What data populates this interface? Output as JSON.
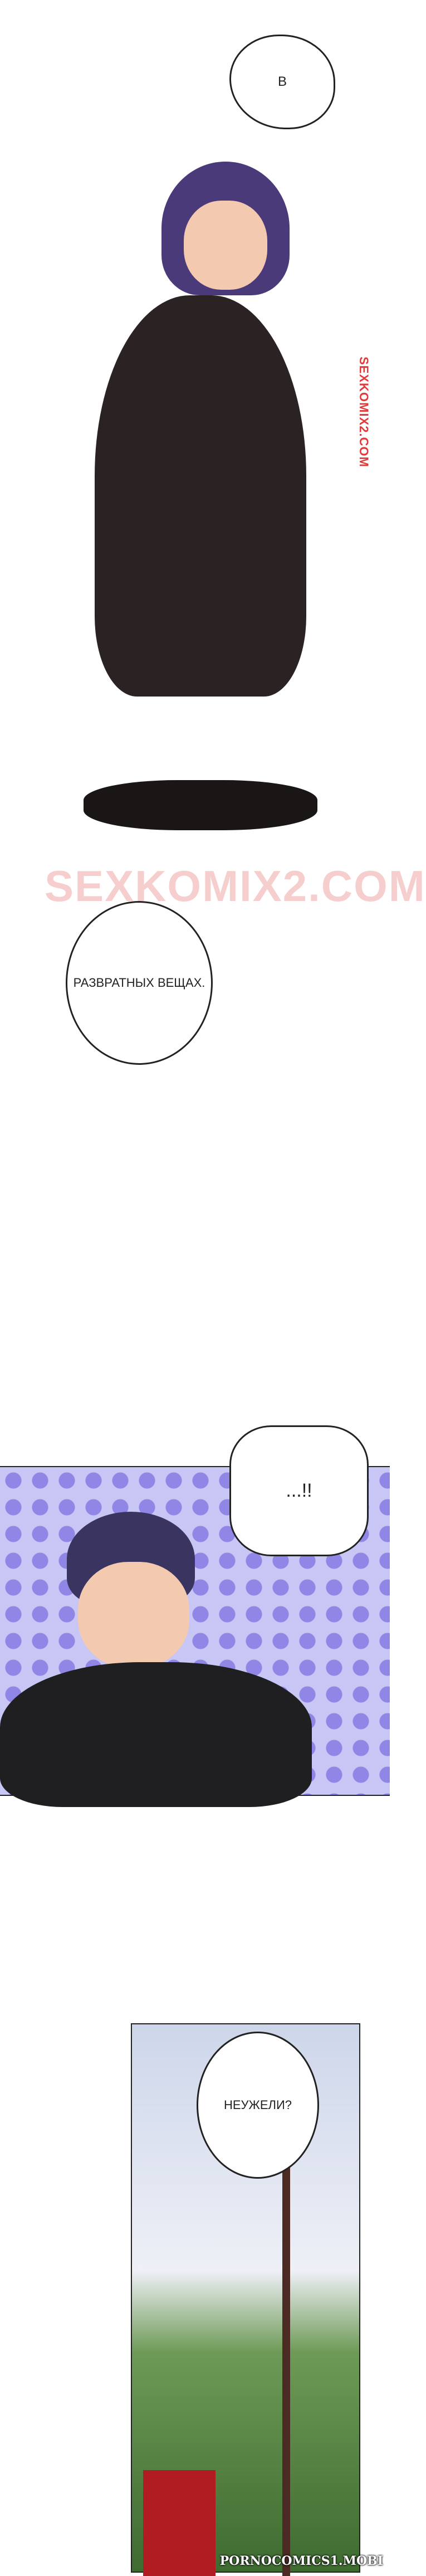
{
  "panel1": {
    "bubble_top": "В",
    "watermark_vertical": "SEXKOMIX2.COM",
    "watermark_large": "SEXKOMIX2.COM",
    "bubble_bottom": "РАЗВРАТНЫХ ВЕЩАХ."
  },
  "panel2": {
    "bubble": "...!!",
    "background_colors": {
      "base": "#c8c6f4",
      "dots": "#8f86e6"
    }
  },
  "panel3": {
    "bubble": "НЕУЖЕЛИ?"
  },
  "footer": {
    "watermark": "PORNOCOMICS1.MOBI"
  }
}
